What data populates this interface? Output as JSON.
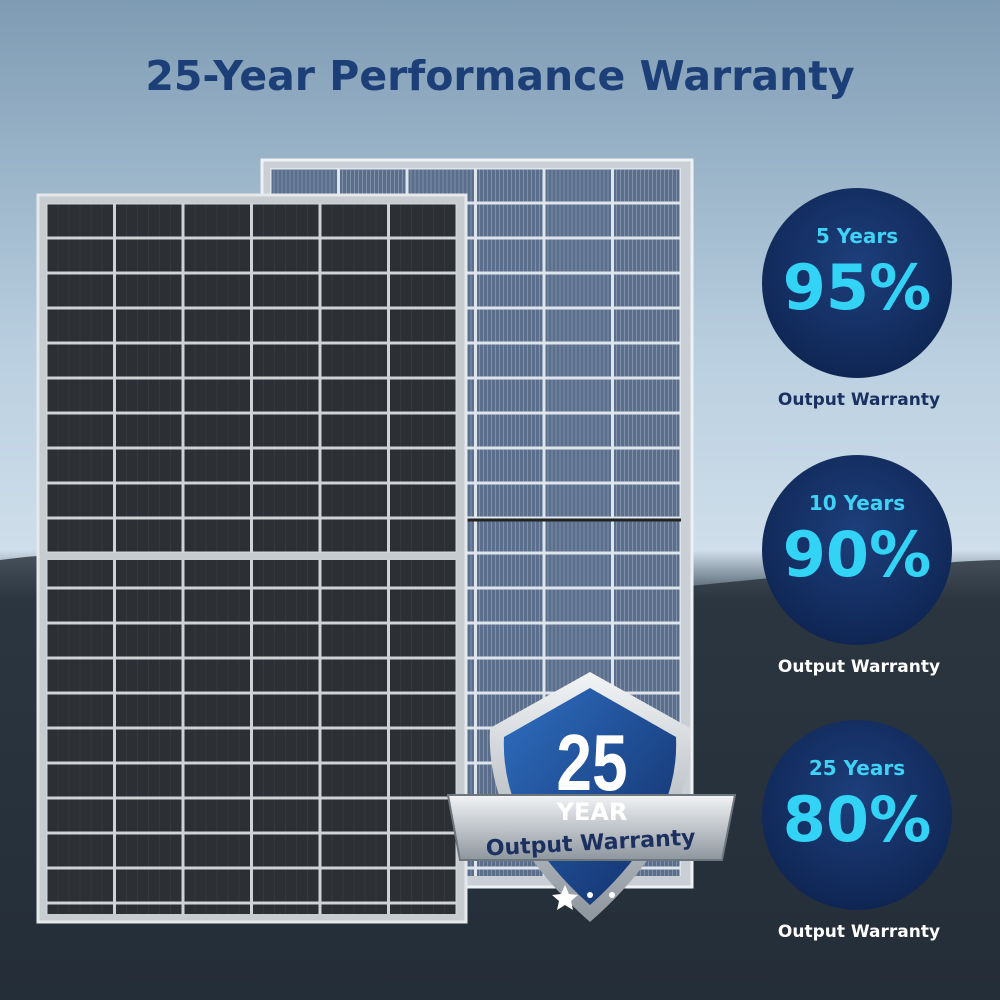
{
  "header": {
    "title": "25-Year Performance Warranty"
  },
  "badges": [
    {
      "period": "5 Years",
      "percent": "95%",
      "caption": "Output Warranty"
    },
    {
      "period": "10 Years",
      "percent": "90%",
      "caption": "Output Warranty"
    },
    {
      "period": "25 Years",
      "percent": "80%",
      "caption": "Output Warranty"
    }
  ],
  "shield": {
    "number": "25",
    "unit": "YEAR",
    "banner": "Output Warranty"
  }
}
